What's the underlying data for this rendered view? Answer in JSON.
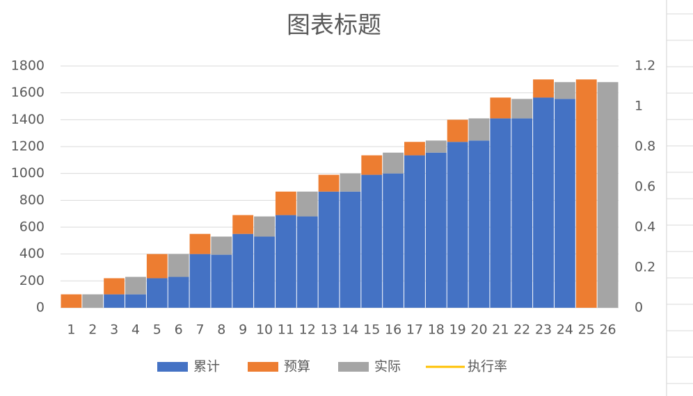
{
  "chart_data": {
    "type": "bar",
    "stacked": true,
    "title": "图表标题",
    "categories": [
      "1",
      "2",
      "3",
      "4",
      "5",
      "6",
      "7",
      "8",
      "9",
      "10",
      "11",
      "12",
      "13",
      "14",
      "15",
      "16",
      "17",
      "18",
      "19",
      "20",
      "21",
      "22",
      "23",
      "24",
      "25",
      "26"
    ],
    "series": [
      {
        "name": "累计",
        "color": "#4472c4",
        "values": [
          null,
          null,
          100,
          100,
          220,
          230,
          400,
          395,
          550,
          530,
          690,
          680,
          865,
          865,
          990,
          1000,
          1135,
          1155,
          1235,
          1245,
          1410,
          1410,
          1565,
          1555,
          null,
          null
        ]
      },
      {
        "name": "预算",
        "color": "#ed7d31",
        "values": [
          100,
          null,
          120,
          null,
          180,
          null,
          150,
          null,
          140,
          null,
          175,
          null,
          125,
          null,
          145,
          null,
          100,
          null,
          165,
          null,
          155,
          null,
          135,
          null,
          1700,
          null
        ]
      },
      {
        "name": "实际",
        "color": "#a5a5a5",
        "values": [
          null,
          100,
          null,
          130,
          null,
          170,
          null,
          135,
          null,
          150,
          null,
          185,
          null,
          135,
          null,
          155,
          null,
          90,
          null,
          165,
          null,
          145,
          null,
          125,
          null,
          1680
        ]
      },
      {
        "name": "执行率",
        "color": "#ffc000",
        "type": "line",
        "axis": "y2",
        "values": [
          null,
          null,
          null,
          null,
          null,
          null,
          null,
          null,
          null,
          null,
          null,
          null,
          null,
          null,
          null,
          null,
          null,
          null,
          null,
          null,
          null,
          null,
          null,
          null,
          null,
          null
        ]
      }
    ],
    "ylim": [
      0,
      1800
    ],
    "yticks": [
      0,
      200,
      400,
      600,
      800,
      1000,
      1200,
      1400,
      1600,
      1800
    ],
    "y2lim": [
      0,
      1.2
    ],
    "y2ticks": [
      0,
      0.2,
      0.4,
      0.6,
      0.8,
      1,
      1.2
    ],
    "grid": true,
    "legend": "bottom"
  }
}
